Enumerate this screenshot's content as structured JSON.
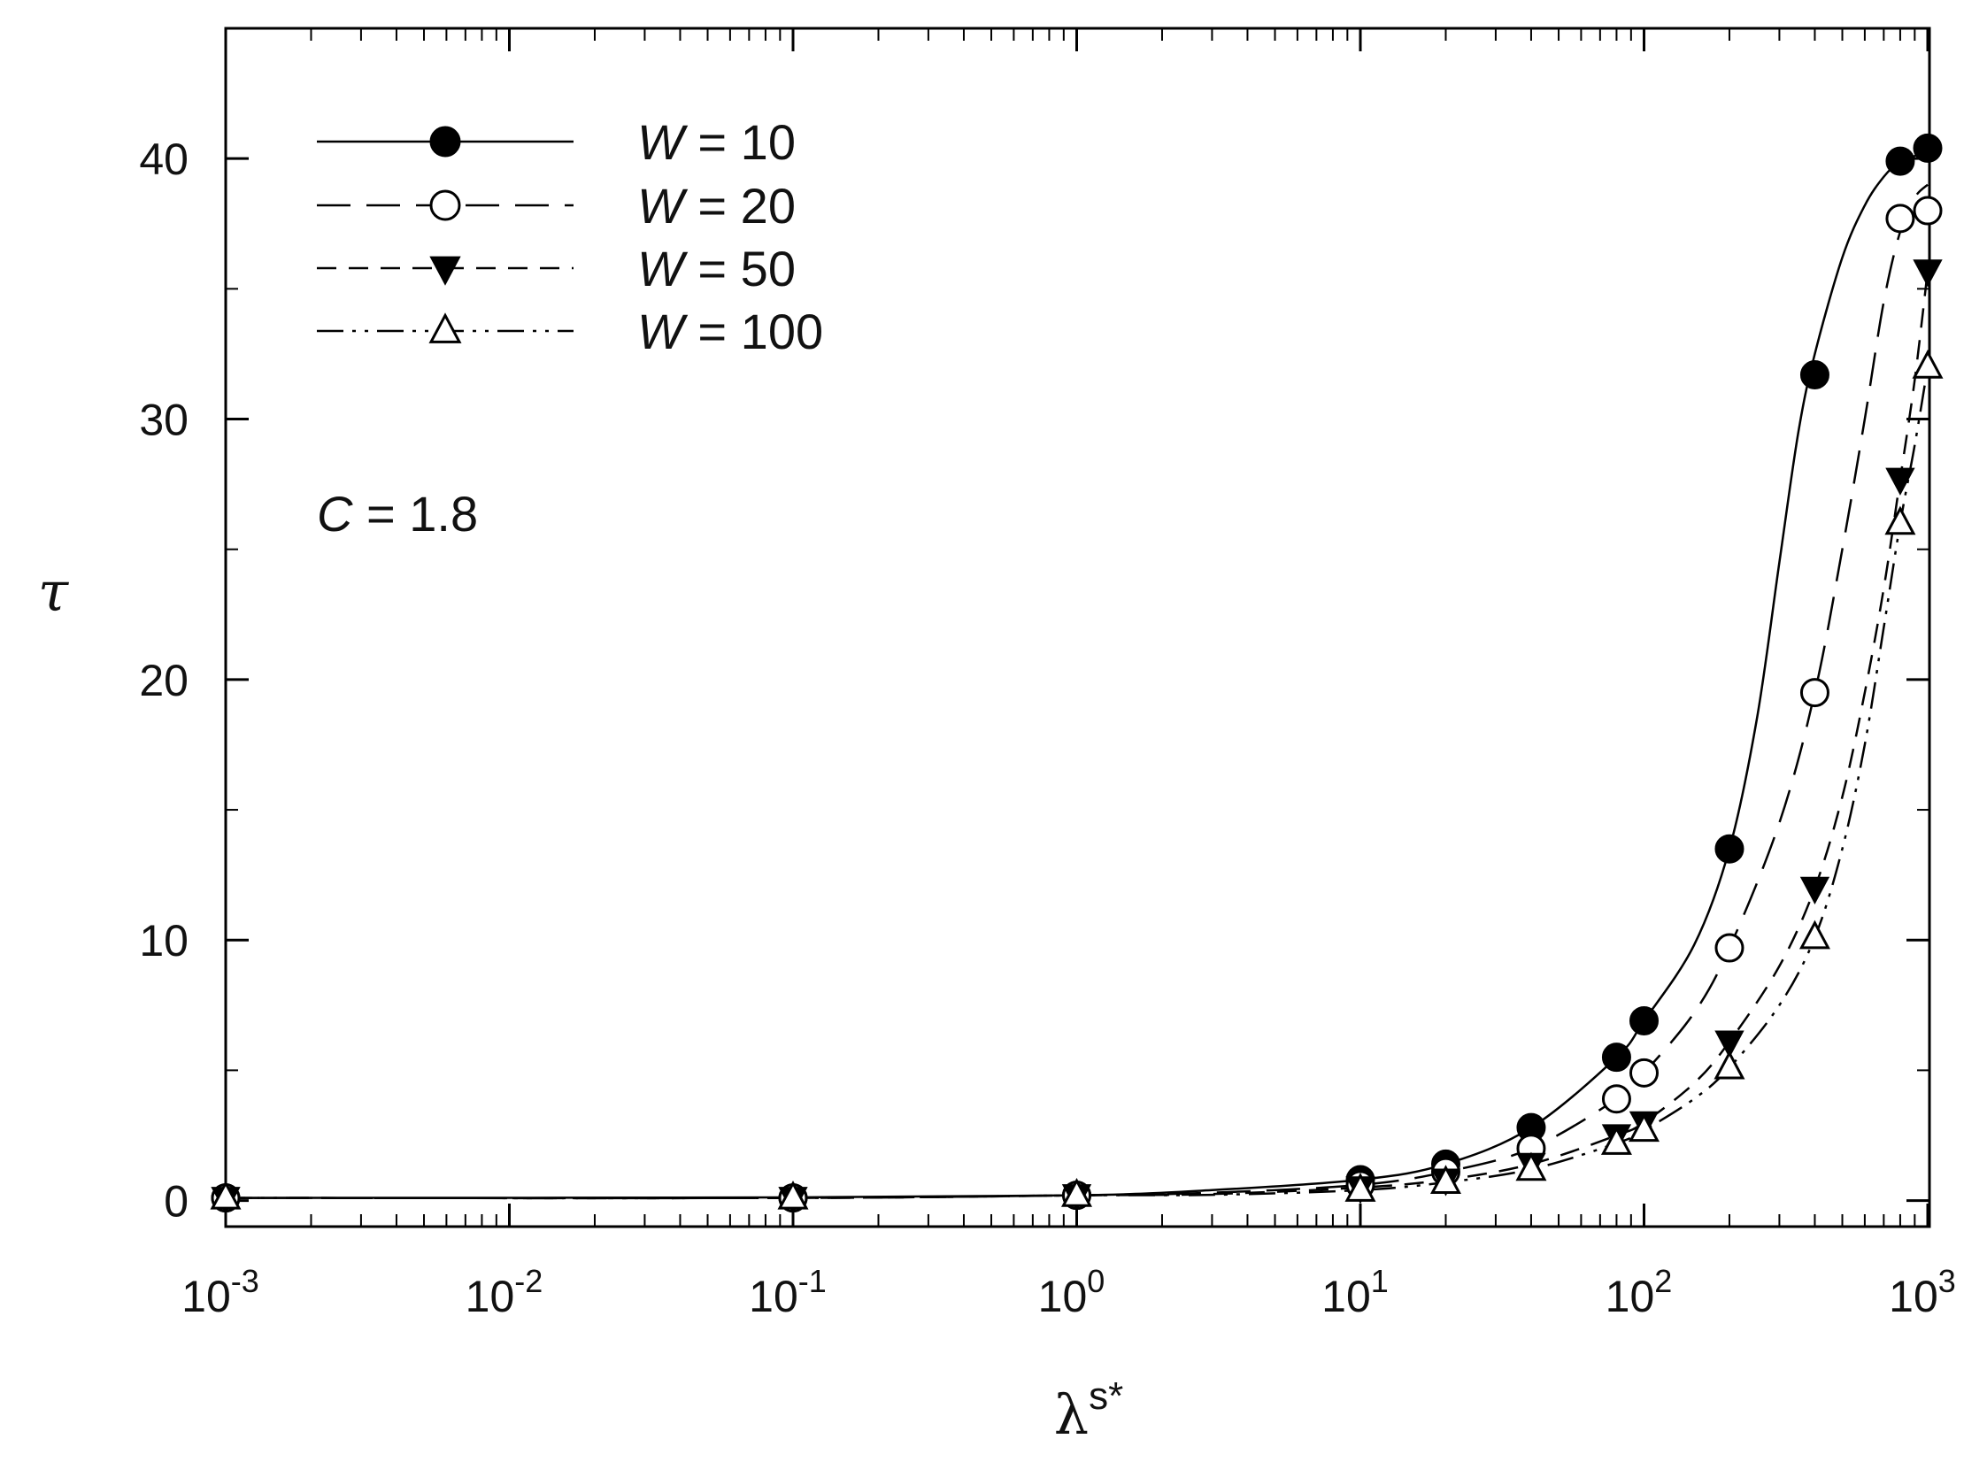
{
  "chart_data": {
    "type": "line",
    "title": "",
    "xlabel": "λ",
    "xlabel_sup": "s*",
    "ylabel": "τ",
    "xscale": "log",
    "xlim": [
      0.001,
      1000
    ],
    "ylim": [
      -1,
      45
    ],
    "x_ticks": [
      {
        "value": 0.001,
        "base": "10",
        "exp": "-3"
      },
      {
        "value": 0.01,
        "base": "10",
        "exp": "-2"
      },
      {
        "value": 0.1,
        "base": "10",
        "exp": "-1"
      },
      {
        "value": 1,
        "base": "10",
        "exp": "0"
      },
      {
        "value": 10,
        "base": "10",
        "exp": "1"
      },
      {
        "value": 100,
        "base": "10",
        "exp": "2"
      },
      {
        "value": 1000,
        "base": "10",
        "exp": "3"
      }
    ],
    "y_ticks": [
      0,
      10,
      20,
      30,
      40
    ],
    "grid": false,
    "legend_position": "top-left",
    "annotation": {
      "var": "C",
      "text": " = 1.8"
    },
    "series": [
      {
        "name": "W = 10",
        "legend_var": "W",
        "legend_rest": " = 10",
        "marker": "filled-circle",
        "line_style": "solid",
        "points": [
          [
            0.001,
            0.1
          ],
          [
            0.1,
            0.1
          ],
          [
            1,
            0.2
          ],
          [
            10,
            0.8
          ],
          [
            20,
            1.4
          ],
          [
            40,
            2.8
          ],
          [
            80,
            5.5
          ],
          [
            100,
            6.9
          ],
          [
            200,
            13.5
          ],
          [
            400,
            31.7
          ],
          [
            800,
            39.9
          ],
          [
            1000,
            40.4
          ]
        ],
        "curve": [
          [
            0.001,
            0.1
          ],
          [
            0.1,
            0.12
          ],
          [
            1,
            0.2
          ],
          [
            3,
            0.4
          ],
          [
            10,
            0.8
          ],
          [
            20,
            1.4
          ],
          [
            40,
            2.8
          ],
          [
            80,
            5.5
          ],
          [
            100,
            6.9
          ],
          [
            150,
            9.8
          ],
          [
            200,
            13.5
          ],
          [
            250,
            18.5
          ],
          [
            300,
            24.5
          ],
          [
            350,
            29.5
          ],
          [
            400,
            32.5
          ],
          [
            500,
            36.2
          ],
          [
            600,
            38.2
          ],
          [
            700,
            39.3
          ],
          [
            800,
            39.9
          ],
          [
            900,
            40.1
          ],
          [
            1000,
            40.4
          ]
        ]
      },
      {
        "name": "W = 20",
        "legend_var": "W",
        "legend_rest": " = 20",
        "marker": "open-circle",
        "line_style": "long-dash",
        "points": [
          [
            0.001,
            0.1
          ],
          [
            0.1,
            0.1
          ],
          [
            1,
            0.2
          ],
          [
            10,
            0.6
          ],
          [
            20,
            1.1
          ],
          [
            40,
            2.0
          ],
          [
            80,
            3.9
          ],
          [
            100,
            4.9
          ],
          [
            200,
            9.7
          ],
          [
            400,
            19.5
          ],
          [
            800,
            37.7
          ],
          [
            1000,
            38.0
          ]
        ],
        "curve": [
          [
            0.001,
            0.1
          ],
          [
            0.1,
            0.1
          ],
          [
            1,
            0.2
          ],
          [
            3,
            0.3
          ],
          [
            10,
            0.6
          ],
          [
            20,
            1.1
          ],
          [
            40,
            2.0
          ],
          [
            80,
            3.9
          ],
          [
            100,
            4.9
          ],
          [
            150,
            7.2
          ],
          [
            200,
            9.7
          ],
          [
            300,
            14.5
          ],
          [
            400,
            19.5
          ],
          [
            500,
            25.0
          ],
          [
            600,
            30.0
          ],
          [
            700,
            34.5
          ],
          [
            800,
            37.2
          ],
          [
            900,
            38.5
          ],
          [
            1000,
            39.0
          ]
        ]
      },
      {
        "name": "W = 50",
        "legend_var": "W",
        "legend_rest": " = 50",
        "marker": "filled-triangle-down",
        "line_style": "short-dash",
        "points": [
          [
            0.001,
            0.1
          ],
          [
            0.1,
            0.1
          ],
          [
            1,
            0.2
          ],
          [
            10,
            0.5
          ],
          [
            20,
            0.8
          ],
          [
            40,
            1.4
          ],
          [
            80,
            2.5
          ],
          [
            100,
            3.0
          ],
          [
            200,
            6.1
          ],
          [
            400,
            12.0
          ],
          [
            800,
            27.7
          ],
          [
            1000,
            35.7
          ]
        ],
        "curve": [
          [
            0.001,
            0.1
          ],
          [
            0.1,
            0.1
          ],
          [
            1,
            0.2
          ],
          [
            3,
            0.25
          ],
          [
            10,
            0.5
          ],
          [
            20,
            0.8
          ],
          [
            40,
            1.4
          ],
          [
            80,
            2.5
          ],
          [
            100,
            3.0
          ],
          [
            150,
            4.5
          ],
          [
            200,
            6.1
          ],
          [
            300,
            9.0
          ],
          [
            400,
            12.0
          ],
          [
            500,
            15.5
          ],
          [
            600,
            19.5
          ],
          [
            700,
            23.5
          ],
          [
            800,
            27.7
          ],
          [
            900,
            31.5
          ],
          [
            1000,
            35.7
          ]
        ]
      },
      {
        "name": "W = 100",
        "legend_var": "W",
        "legend_rest": " = 100",
        "marker": "open-triangle-up",
        "line_style": "dash-dot-dot",
        "points": [
          [
            0.001,
            0.1
          ],
          [
            0.1,
            0.1
          ],
          [
            1,
            0.2
          ],
          [
            10,
            0.4
          ],
          [
            20,
            0.7
          ],
          [
            40,
            1.2
          ],
          [
            80,
            2.2
          ],
          [
            100,
            2.7
          ],
          [
            200,
            5.1
          ],
          [
            400,
            10.1
          ],
          [
            800,
            26.0
          ],
          [
            1000,
            32.0
          ]
        ],
        "curve": [
          [
            0.001,
            0.1
          ],
          [
            0.1,
            0.1
          ],
          [
            1,
            0.2
          ],
          [
            3,
            0.22
          ],
          [
            10,
            0.4
          ],
          [
            20,
            0.7
          ],
          [
            40,
            1.2
          ],
          [
            80,
            2.2
          ],
          [
            100,
            2.7
          ],
          [
            150,
            3.9
          ],
          [
            200,
            5.1
          ],
          [
            300,
            7.5
          ],
          [
            400,
            10.1
          ],
          [
            500,
            13.5
          ],
          [
            600,
            17.5
          ],
          [
            700,
            22.0
          ],
          [
            800,
            26.0
          ],
          [
            900,
            29.0
          ],
          [
            1000,
            32.0
          ]
        ]
      }
    ]
  }
}
